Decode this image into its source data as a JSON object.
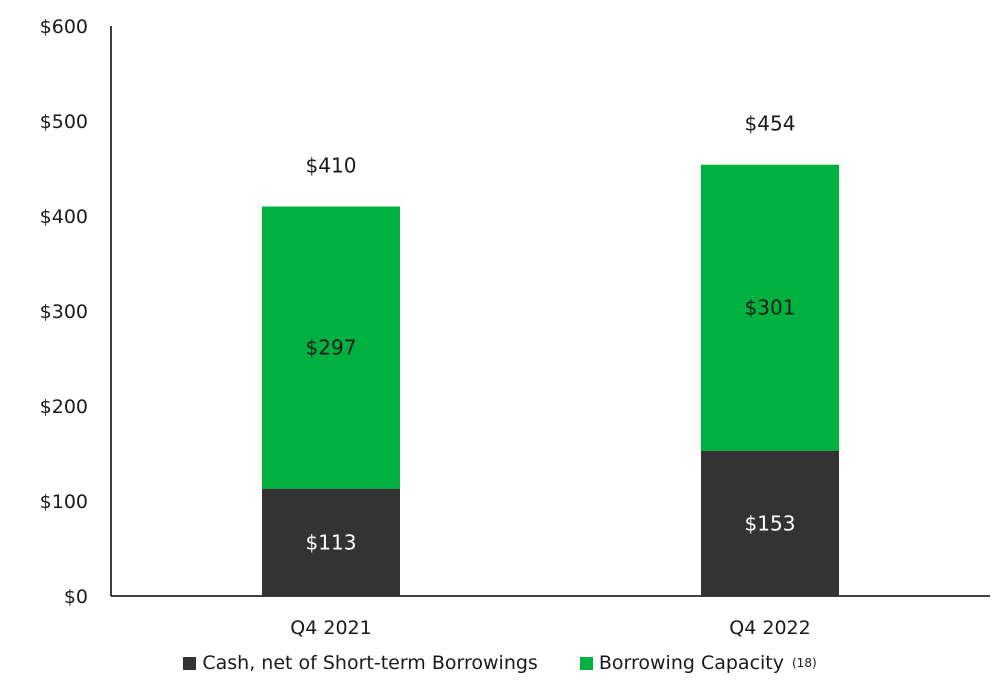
{
  "chart_data": {
    "type": "bar",
    "stacked": true,
    "categories": [
      "Q4 2021",
      "Q4 2022"
    ],
    "series": [
      {
        "name": "Cash, net of Short-term Borrowings",
        "values": [
          113,
          153
        ],
        "color": "#333333",
        "label_color": "#ffffff"
      },
      {
        "name": "Borrowing Capacity",
        "values": [
          297,
          301
        ],
        "color": "#00b140",
        "label_color": "#1a1a1a"
      }
    ],
    "totals": [
      410,
      454
    ],
    "value_labels": {
      "series_0": [
        "$113",
        "$153"
      ],
      "series_1": [
        "$297",
        "$301"
      ],
      "totals": [
        "$410",
        "$454"
      ]
    },
    "y_ticks": [
      0,
      100,
      200,
      300,
      400,
      500,
      600
    ],
    "y_tick_labels": [
      "$0",
      "$100",
      "$200",
      "$300",
      "$400",
      "$500",
      "$600"
    ],
    "ylim": [
      0,
      600
    ],
    "grid": false,
    "legend_position": "bottom"
  },
  "legend": {
    "items": [
      {
        "label": "Cash, net of Short-term Borrowings",
        "color": "#333333",
        "note": ""
      },
      {
        "label": "Borrowing Capacity",
        "color": "#00b140",
        "note": "(18)"
      }
    ]
  }
}
